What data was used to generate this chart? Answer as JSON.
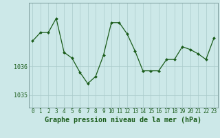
{
  "x": [
    0,
    1,
    2,
    3,
    4,
    5,
    6,
    7,
    8,
    9,
    10,
    11,
    12,
    13,
    14,
    15,
    16,
    17,
    18,
    19,
    20,
    21,
    22,
    23
  ],
  "y": [
    1036.9,
    1037.2,
    1037.2,
    1037.7,
    1036.5,
    1036.3,
    1035.8,
    1035.4,
    1035.65,
    1036.4,
    1037.55,
    1037.55,
    1037.15,
    1036.55,
    1035.85,
    1035.85,
    1035.85,
    1036.25,
    1036.25,
    1036.7,
    1036.6,
    1036.45,
    1036.25,
    1037.0
  ],
  "ytick_vals": [
    1035,
    1036
  ],
  "ytick_labels": [
    "1035",
    "1036"
  ],
  "xtick_labels": [
    "0",
    "1",
    "2",
    "3",
    "4",
    "5",
    "6",
    "7",
    "8",
    "9",
    "10",
    "11",
    "12",
    "13",
    "14",
    "15",
    "16",
    "17",
    "18",
    "19",
    "20",
    "21",
    "22",
    "23"
  ],
  "xlabel": "Graphe pression niveau de la mer (hPa)",
  "ylim": [
    1034.55,
    1038.25
  ],
  "xlim": [
    -0.5,
    23.5
  ],
  "line_color": "#1a5c1a",
  "bg_color": "#cce8e8",
  "grid_color": "#aacaca",
  "spine_color": "#7a9a9a",
  "tick_color": "#1a5c1a",
  "label_color": "#1a5c1a",
  "tick_fontsize": 6.0,
  "xlabel_fontsize": 7.2,
  "marker": "D",
  "markersize": 2.0,
  "linewidth": 0.9
}
